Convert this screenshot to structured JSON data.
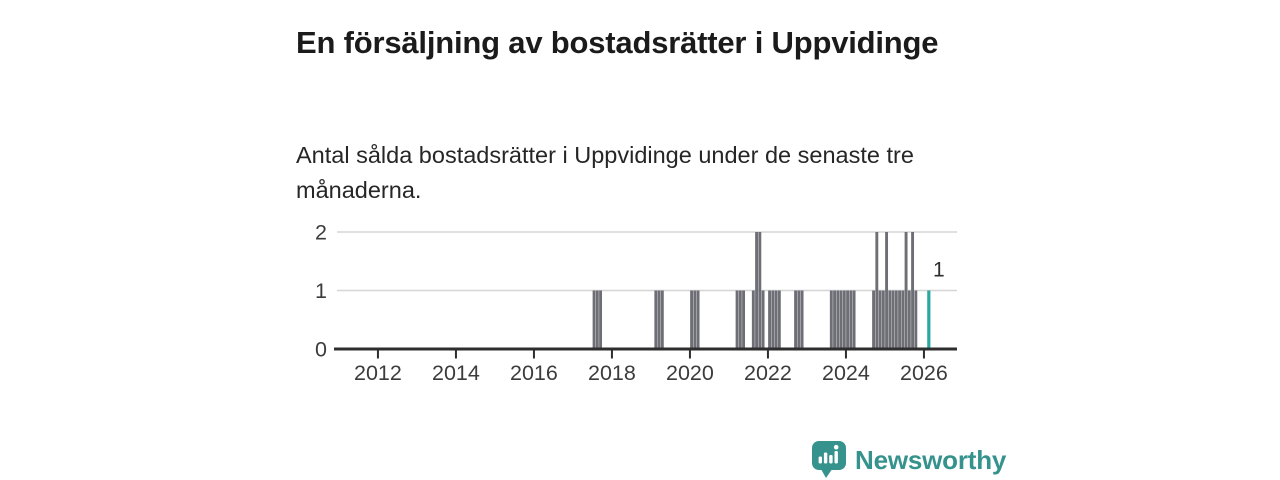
{
  "chart_data": {
    "type": "bar",
    "title": "En försäljning av bostadsrätter i Uppvidinge",
    "subtitle": "Antal sålda bostadsrätter i Uppvidinge under de senaste tre månaderna.",
    "x_ticks": [
      "2012",
      "2014",
      "2016",
      "2018",
      "2020",
      "2022",
      "2024",
      "2026"
    ],
    "x_range_years": [
      2010.95,
      2026.85
    ],
    "y_ticks": [
      "0",
      "1",
      "2"
    ],
    "y_range": [
      0,
      2
    ],
    "grid": true,
    "legend": "none",
    "bar_color": "#6e6e76",
    "highlight_color": "#2aa89f",
    "axis_color": "#2e2e2e",
    "grid_color": "#d5d5d5",
    "label_color": "#3c3c3c",
    "months": [
      [
        "2017-07",
        1
      ],
      [
        "2017-08",
        1
      ],
      [
        "2017-09",
        1
      ],
      [
        "2019-02",
        1
      ],
      [
        "2019-03",
        1
      ],
      [
        "2019-04",
        1
      ],
      [
        "2020-01",
        1
      ],
      [
        "2020-02",
        1
      ],
      [
        "2020-03",
        1
      ],
      [
        "2021-03",
        1
      ],
      [
        "2021-04",
        1
      ],
      [
        "2021-05",
        1
      ],
      [
        "2021-08",
        1
      ],
      [
        "2021-09",
        2
      ],
      [
        "2021-10",
        2
      ],
      [
        "2021-11",
        1
      ],
      [
        "2022-01",
        1
      ],
      [
        "2022-02",
        1
      ],
      [
        "2022-03",
        1
      ],
      [
        "2022-04",
        1
      ],
      [
        "2022-09",
        1
      ],
      [
        "2022-10",
        1
      ],
      [
        "2022-11",
        1
      ],
      [
        "2023-08",
        1
      ],
      [
        "2023-09",
        1
      ],
      [
        "2023-10",
        1
      ],
      [
        "2023-11",
        1
      ],
      [
        "2023-12",
        1
      ],
      [
        "2024-01",
        1
      ],
      [
        "2024-02",
        1
      ],
      [
        "2024-03",
        1
      ],
      [
        "2024-09",
        1
      ],
      [
        "2024-10",
        2
      ],
      [
        "2024-11",
        1
      ],
      [
        "2024-12",
        1
      ],
      [
        "2025-01",
        2
      ],
      [
        "2025-02",
        1
      ],
      [
        "2025-03",
        1
      ],
      [
        "2025-04",
        1
      ],
      [
        "2025-05",
        1
      ],
      [
        "2025-06",
        1
      ],
      [
        "2025-07",
        2
      ],
      [
        "2025-08",
        1
      ],
      [
        "2025-09",
        2
      ],
      [
        "2025-10",
        1
      ]
    ],
    "highlight": {
      "month": "2026-02",
      "value": 1,
      "label": "1"
    }
  },
  "branding": {
    "name": "Newsworthy",
    "color": "#35928C"
  }
}
